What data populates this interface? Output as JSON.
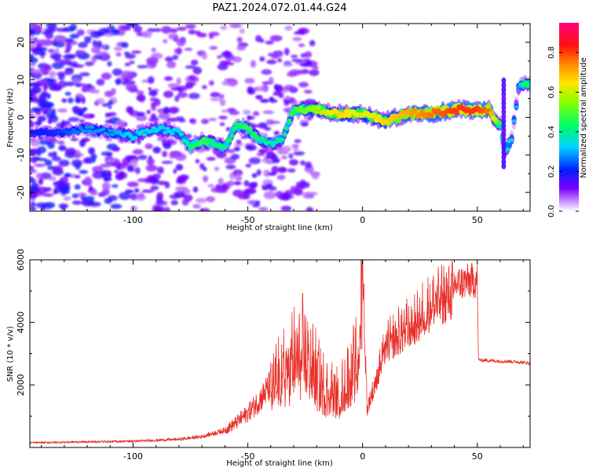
{
  "chart_data": [
    {
      "type": "heatmap",
      "title": "PAZ1.2024.072.01.44.G24",
      "xlabel": "Height of straight line (km)",
      "ylabel": "Frequency (Hz)",
      "xlim": [
        -145,
        73
      ],
      "ylim": [
        -25,
        25
      ],
      "xticks": [
        -100,
        -50,
        0,
        50
      ],
      "yticks": [
        -20,
        -10,
        0,
        10,
        20
      ],
      "colorbar": {
        "label": "Normalized spectral amplitude",
        "ticks": [
          "0.0",
          "0.2",
          "0.4",
          "0.6",
          "0.8"
        ],
        "range": [
          0,
          0.95
        ],
        "colormap": "gist_rainbow_r"
      },
      "ridge": {
        "x": [
          -145,
          -130,
          -120,
          -110,
          -100,
          -90,
          -80,
          -75,
          -70,
          -65,
          -60,
          -55,
          -50,
          -45,
          -40,
          -35,
          -30,
          -25,
          -20,
          -10,
          0,
          10,
          20,
          30,
          40,
          50,
          55,
          60,
          62,
          65,
          68,
          70,
          73
        ],
        "y": [
          -4,
          -4,
          -3,
          -4,
          -5,
          -3,
          -4,
          -8,
          -6,
          -7,
          -8,
          -2,
          -3,
          -6,
          -7,
          -6,
          2,
          2,
          2,
          1,
          1,
          -1,
          1,
          1,
          2,
          2,
          2,
          -2,
          -9,
          -6,
          8,
          9,
          9
        ],
        "amplitude": [
          0.2,
          0.25,
          0.3,
          0.3,
          0.35,
          0.35,
          0.35,
          0.45,
          0.5,
          0.45,
          0.45,
          0.45,
          0.5,
          0.45,
          0.4,
          0.4,
          0.5,
          0.55,
          0.6,
          0.7,
          0.65,
          0.7,
          0.75,
          0.8,
          0.85,
          0.85,
          0.8,
          0.5,
          0.4,
          0.35,
          0.3,
          0.45,
          0.45
        ]
      }
    },
    {
      "type": "line",
      "xlabel": "Height of straight line (km)",
      "ylabel": "SNR (10 * v/v)",
      "xlim": [
        -145,
        73
      ],
      "ylim": [
        0,
        6000
      ],
      "xticks": [
        -100,
        -50,
        0,
        50
      ],
      "yticks": [
        2000,
        4000,
        6000
      ],
      "color": "#e8302a",
      "envelope": {
        "x": [
          -145,
          -120,
          -100,
          -80,
          -70,
          -60,
          -55,
          -50,
          -45,
          -40,
          -35,
          -30,
          -25,
          -20,
          -15,
          -10,
          -5,
          -2,
          0,
          2,
          5,
          10,
          15,
          20,
          25,
          30,
          35,
          40,
          45,
          50,
          50.5,
          55,
          60,
          65,
          73
        ],
        "y": [
          150,
          180,
          200,
          260,
          350,
          550,
          800,
          1100,
          1500,
          2000,
          2600,
          3100,
          3300,
          2500,
          2000,
          1800,
          2600,
          3000,
          6000,
          1300,
          2000,
          3400,
          3700,
          4000,
          4300,
          4800,
          5000,
          5200,
          5300,
          5350,
          2800,
          2780,
          2760,
          2750,
          2700
        ]
      }
    }
  ]
}
